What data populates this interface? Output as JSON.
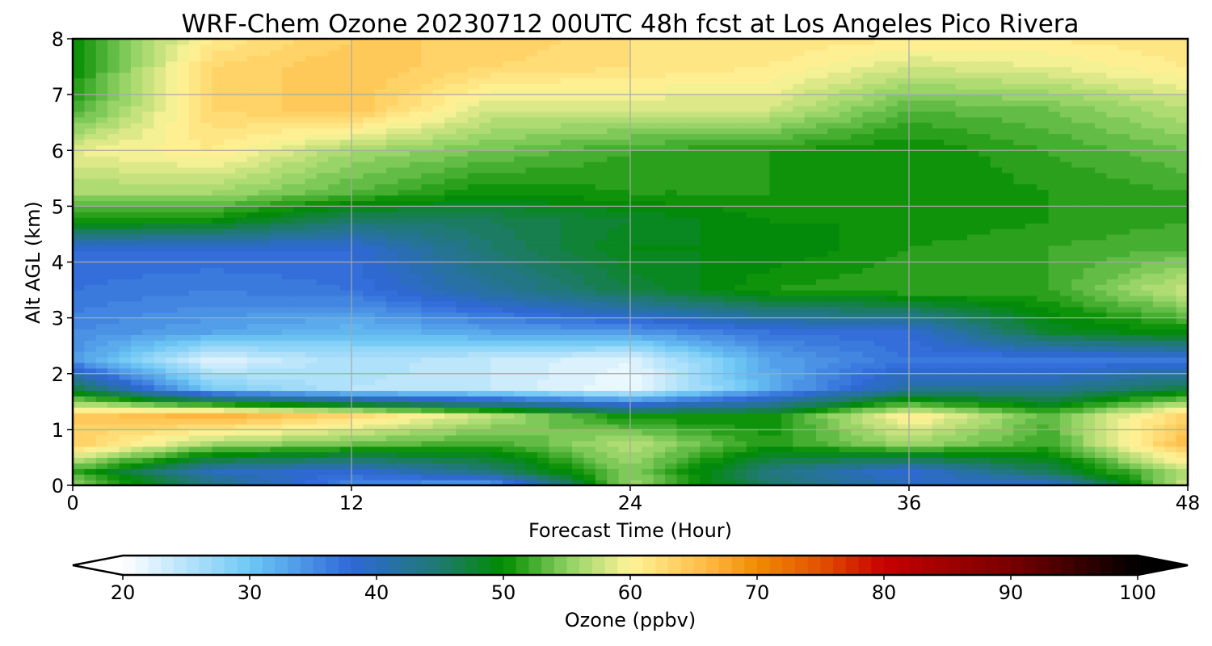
{
  "chart_data": {
    "type": "heatmap",
    "title": "WRF-Chem Ozone  20230712 00UTC 48h fcst at Los Angeles Pico Rivera",
    "xlabel": "Forecast Time (Hour)",
    "ylabel": "Alt AGL (km)",
    "xlim": [
      0,
      48
    ],
    "ylim": [
      0,
      8
    ],
    "xticks": [
      "0",
      "12",
      "24",
      "36",
      "48"
    ],
    "yticks": [
      "0",
      "1",
      "2",
      "3",
      "4",
      "5",
      "6",
      "7",
      "8"
    ],
    "grid": true,
    "x": [
      0,
      6,
      12,
      18,
      24,
      30,
      36,
      42,
      48
    ],
    "y": [
      0,
      0.25,
      0.75,
      1.25,
      1.75,
      2.25,
      2.75,
      3.5,
      4.25,
      4.75,
      5.25,
      6,
      6.75,
      7.5,
      8
    ],
    "values": [
      [
        56,
        44,
        35,
        32,
        56,
        45,
        40,
        38,
        58
      ],
      [
        52,
        40,
        38,
        44,
        55,
        44,
        38,
        46,
        57
      ],
      [
        64,
        56,
        54,
        52,
        57,
        51,
        56,
        52,
        66
      ],
      [
        64,
        67,
        63,
        57,
        50,
        50,
        61,
        53,
        64
      ],
      [
        47,
        29,
        25,
        24,
        21,
        32,
        42,
        42,
        47
      ],
      [
        34,
        22,
        26,
        24,
        22,
        33,
        37,
        36,
        37
      ],
      [
        35,
        33,
        31,
        33,
        34,
        37,
        38,
        48,
        50
      ],
      [
        37,
        36,
        37,
        42,
        47,
        51,
        52,
        52,
        58
      ],
      [
        38,
        38,
        38,
        45,
        49,
        49,
        51,
        52,
        53
      ],
      [
        51,
        50,
        45,
        46,
        48,
        50,
        50,
        51,
        52
      ],
      [
        56,
        56,
        53,
        50,
        51,
        51,
        50,
        51,
        52
      ],
      [
        59,
        61,
        56,
        54,
        52,
        51,
        50,
        52,
        54
      ],
      [
        52,
        63,
        65,
        58,
        58,
        58,
        53,
        54,
        57
      ],
      [
        50,
        63,
        65,
        63,
        62,
        61,
        58,
        59,
        61
      ],
      [
        50,
        61,
        64,
        64,
        62,
        62,
        61,
        61,
        62
      ]
    ],
    "colorbar": {
      "label": "Ozone  (ppbv)",
      "min": 20,
      "max": 100,
      "step": 1,
      "extend": "both",
      "ticks": [
        "20",
        "30",
        "40",
        "50",
        "60",
        "70",
        "80",
        "90",
        "100"
      ],
      "stops": [
        {
          "v": 20,
          "c": "#ffffff"
        },
        {
          "v": 30,
          "c": "#6ec8f5"
        },
        {
          "v": 38,
          "c": "#2f68d8"
        },
        {
          "v": 45,
          "c": "#1f7a6e"
        },
        {
          "v": 50,
          "c": "#008c00"
        },
        {
          "v": 55,
          "c": "#8cd062"
        },
        {
          "v": 60,
          "c": "#fff49a"
        },
        {
          "v": 66,
          "c": "#ffbb44"
        },
        {
          "v": 70,
          "c": "#ef8c00"
        },
        {
          "v": 75,
          "c": "#e45000"
        },
        {
          "v": 80,
          "c": "#c80000"
        },
        {
          "v": 90,
          "c": "#780000"
        },
        {
          "v": 100,
          "c": "#000000"
        }
      ]
    }
  }
}
